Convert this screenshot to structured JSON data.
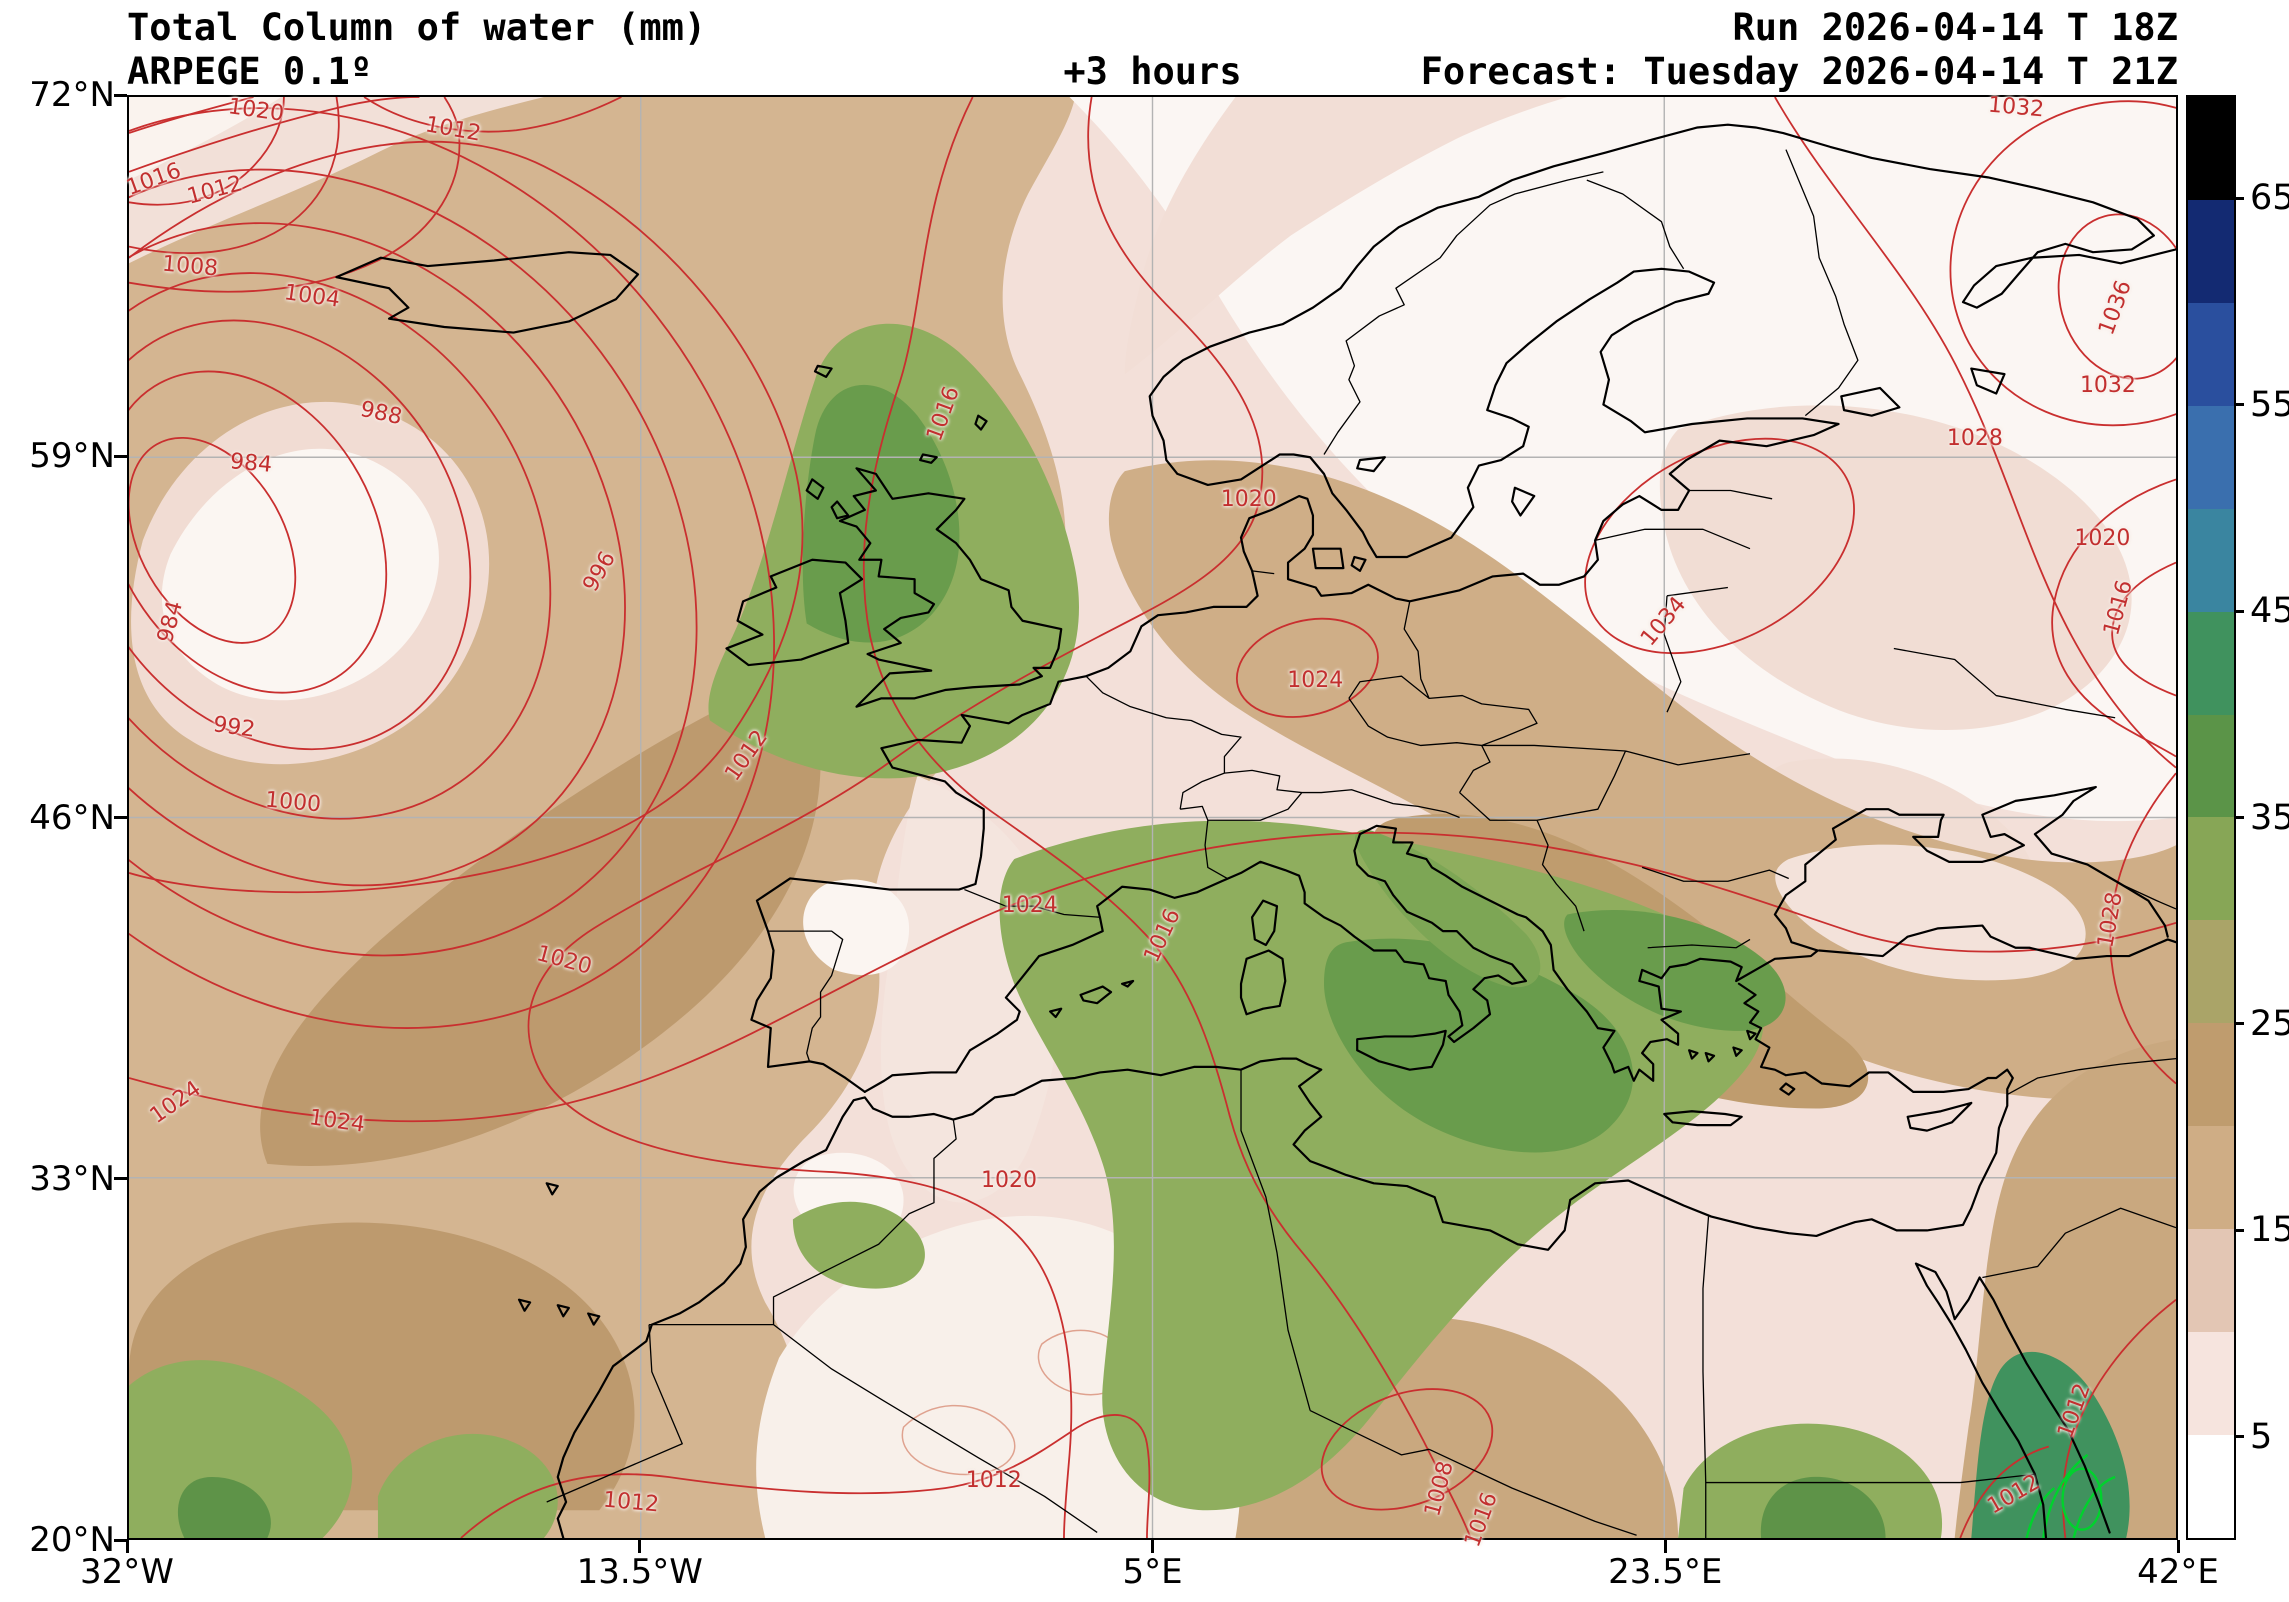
{
  "header": {
    "title": "Total Column of water (mm)",
    "model": "ARPEGE 0.1º",
    "lead": "+3 hours",
    "run": "Run 2026-04-14 T 18Z",
    "valid": "Forecast: Tuesday 2026-04-14 T 21Z"
  },
  "axes": {
    "lat_ticks": [
      {
        "label": "72°N",
        "lat": 72
      },
      {
        "label": "59°N",
        "lat": 59
      },
      {
        "label": "46°N",
        "lat": 46
      },
      {
        "label": "33°N",
        "lat": 33
      },
      {
        "label": "20°N",
        "lat": 20
      }
    ],
    "lon_ticks": [
      {
        "label": "32°W",
        "lon": -32
      },
      {
        "label": "13.5°W",
        "lon": -13.5
      },
      {
        "label": "5°E",
        "lon": 5
      },
      {
        "label": "23.5°E",
        "lon": 23.5
      },
      {
        "label": "42°E",
        "lon": 42
      }
    ],
    "extent": {
      "lon_min": -32,
      "lon_max": 42,
      "lat_min": 20,
      "lat_max": 72
    }
  },
  "colorbar": {
    "min": 0,
    "max": 70,
    "tick_values": [
      65,
      55,
      45,
      35,
      25,
      15,
      5
    ],
    "colors_bottom_to_top": [
      "#ffffff",
      "#f6e4de",
      "#e3c6b4",
      "#cfad85",
      "#bf9c6e",
      "#aaa468",
      "#87a656",
      "#5b9448",
      "#40925e",
      "#3a85a0",
      "#3a6fae",
      "#2a4f9e",
      "#132a72",
      "#000000"
    ]
  },
  "chart_data": {
    "type": "heatmap",
    "field": "Total Column of water",
    "units": "mm",
    "model": "ARPEGE 0.1º",
    "lead_hours": 3,
    "run_time": "2026-04-14 18Z",
    "valid_time": "Tuesday 2026-04-14 21Z",
    "extent": {
      "lon": [
        -32,
        42
      ],
      "lat": [
        20,
        72
      ]
    },
    "colorbar_levels": [
      0,
      5,
      10,
      15,
      20,
      25,
      30,
      35,
      40,
      45,
      50,
      55,
      60,
      65,
      70
    ]
  },
  "isobar_labels": [
    {
      "t": "1020",
      "lon": -27.4,
      "lat": 71.5,
      "r": 8
    },
    {
      "t": "1012",
      "lon": -20.3,
      "lat": 70.8,
      "r": 10
    },
    {
      "t": "1016",
      "lon": -31.1,
      "lat": 69.0,
      "r": -20
    },
    {
      "t": "1012",
      "lon": -28.9,
      "lat": 68.6,
      "r": -15
    },
    {
      "t": "1008",
      "lon": -29.8,
      "lat": 65.9,
      "r": 5
    },
    {
      "t": "1004",
      "lon": -25.4,
      "lat": 64.8,
      "r": 8
    },
    {
      "t": "988",
      "lon": -22.9,
      "lat": 60.6,
      "r": 12
    },
    {
      "t": "984",
      "lon": -27.6,
      "lat": 58.8,
      "r": 5
    },
    {
      "t": "996",
      "lon": -15.0,
      "lat": 54.9,
      "r": -60
    },
    {
      "t": "984",
      "lon": -30.5,
      "lat": 53.1,
      "r": -75
    },
    {
      "t": "992",
      "lon": -28.2,
      "lat": 49.3,
      "r": 8
    },
    {
      "t": "1000",
      "lon": -26.1,
      "lat": 46.6,
      "r": 5
    },
    {
      "t": "1012",
      "lon": -9.7,
      "lat": 48.3,
      "r": -55
    },
    {
      "t": "1016",
      "lon": -2.6,
      "lat": 60.6,
      "r": -70
    },
    {
      "t": "1020",
      "lon": -16.3,
      "lat": 40.9,
      "r": 15
    },
    {
      "t": "1024",
      "lon": -30.3,
      "lat": 35.8,
      "r": -35
    },
    {
      "t": "1024",
      "lon": -24.5,
      "lat": 35.1,
      "r": 8
    },
    {
      "t": "1024",
      "lon": 0.5,
      "lat": 42.9,
      "r": 0
    },
    {
      "t": "1016",
      "lon": 5.3,
      "lat": 41.8,
      "r": -65
    },
    {
      "t": "1020",
      "lon": -0.25,
      "lat": 33.0,
      "r": 0
    },
    {
      "t": "1020",
      "lon": 8.4,
      "lat": 57.5,
      "r": 0
    },
    {
      "t": "1024",
      "lon": 10.8,
      "lat": 51.0,
      "r": 0
    },
    {
      "t": "1034",
      "lon": 23.4,
      "lat": 53.1,
      "r": -50
    },
    {
      "t": "1032",
      "lon": 36.1,
      "lat": 71.6,
      "r": 5
    },
    {
      "t": "1036",
      "lon": 39.7,
      "lat": 64.4,
      "r": -70
    },
    {
      "t": "1032",
      "lon": 39.4,
      "lat": 61.6,
      "r": 0
    },
    {
      "t": "1028",
      "lon": 34.6,
      "lat": 59.7,
      "r": 0
    },
    {
      "t": "1020",
      "lon": 39.2,
      "lat": 56.1,
      "r": 0
    },
    {
      "t": "1016",
      "lon": 39.8,
      "lat": 53.6,
      "r": -75
    },
    {
      "t": "1028",
      "lon": 39.5,
      "lat": 42.4,
      "r": -80
    },
    {
      "t": "1012",
      "lon": 38.2,
      "lat": 24.7,
      "r": -70
    },
    {
      "t": "1012",
      "lon": 36.0,
      "lat": 21.7,
      "r": -30
    },
    {
      "t": "1012",
      "lon": -13.9,
      "lat": 21.4,
      "r": 5
    },
    {
      "t": "1012",
      "lon": -0.8,
      "lat": 22.2,
      "r": 0
    },
    {
      "t": "1008",
      "lon": 15.3,
      "lat": 21.9,
      "r": -75
    },
    {
      "t": "1016",
      "lon": 16.8,
      "lat": 20.8,
      "r": -70
    }
  ],
  "colors": {
    "isobar": "#c22f2f",
    "coastline": "#000000",
    "grid": "#b3b3b3",
    "highlight_contour": "#00d22d",
    "background": "#f3e0d9"
  }
}
